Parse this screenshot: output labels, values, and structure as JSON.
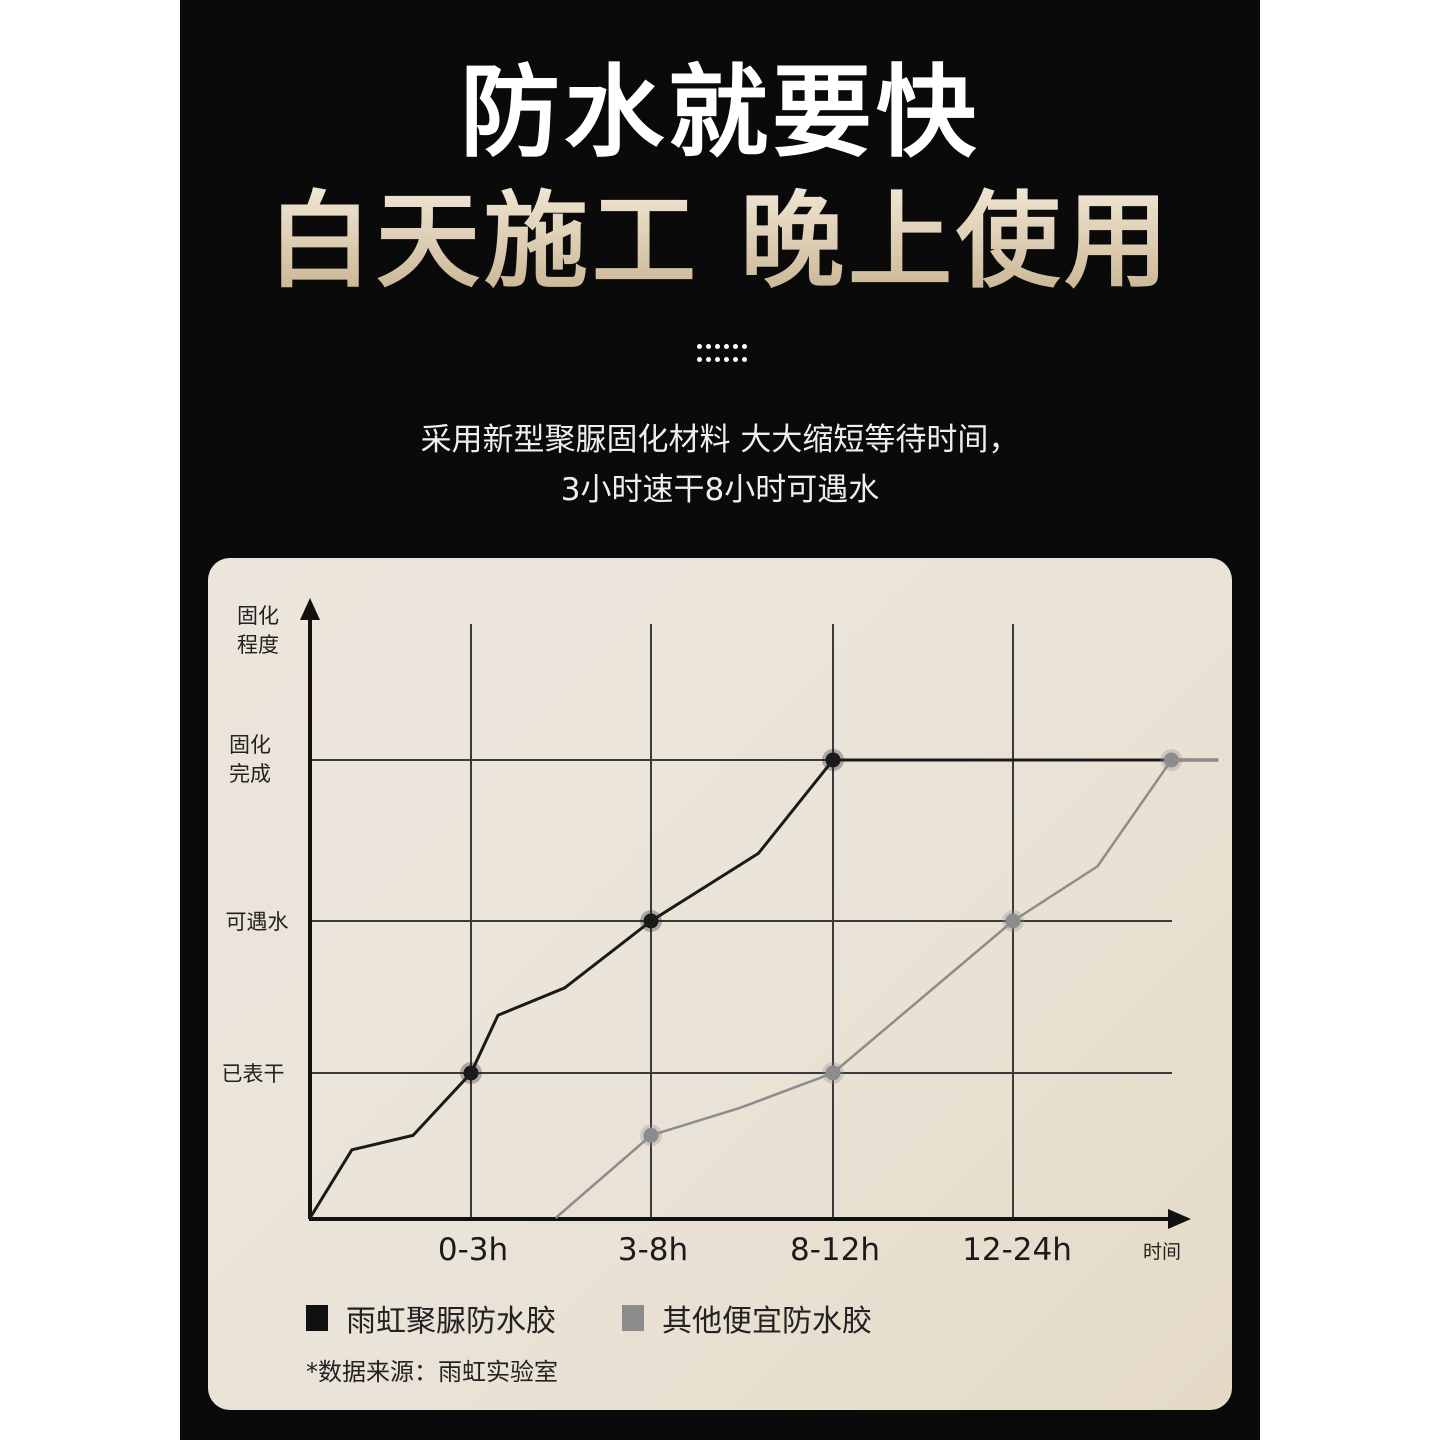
{
  "header": {
    "title": "防水就要快",
    "subtitle": "白天施工 晚上使用",
    "description_line1": "采用新型聚脲固化材料 大大缩短等待时间，",
    "description_line2": "3小时速干8小时可遇水"
  },
  "colors": {
    "background": "#0b0a0a",
    "title": "#ffffff",
    "subtitle_gold": "#d8c8a8",
    "card": "#ebe4d9",
    "series_primary": "#1a1a1a",
    "series_secondary": "#8c8c8c"
  },
  "chart_data": {
    "type": "line",
    "ylabel": "固化程度",
    "xlabel": "时间",
    "y_levels": [
      "已表干",
      "可遇水",
      "固化完成"
    ],
    "categories": [
      "0-3h",
      "3-8h",
      "8-12h",
      "12-24h"
    ],
    "grid": true,
    "legend_placement": "bottom-left",
    "series": [
      {
        "name": "雨虹聚脲防水胶",
        "color": "#1a1a1a",
        "x": [
          0,
          0.26,
          0.64,
          1,
          1.15,
          1.52,
          2,
          2.59,
          3,
          5.14
        ],
        "y": [
          0,
          0.47,
          0.57,
          1,
          1.38,
          1.56,
          2,
          2.42,
          3,
          3
        ],
        "markers": [
          1,
          2,
          3
        ]
      },
      {
        "name": "其他便宜防水胶",
        "color": "#8c8c8c",
        "x": [
          1.47,
          2,
          2.49,
          3,
          4,
          4.47,
          4.88,
          5.14
        ],
        "y": [
          0,
          0.57,
          0.76,
          1,
          2,
          2.34,
          3,
          3
        ],
        "markers": [
          2,
          3,
          4,
          4.88
        ]
      }
    ],
    "source": "*数据来源：雨虹实验室"
  }
}
